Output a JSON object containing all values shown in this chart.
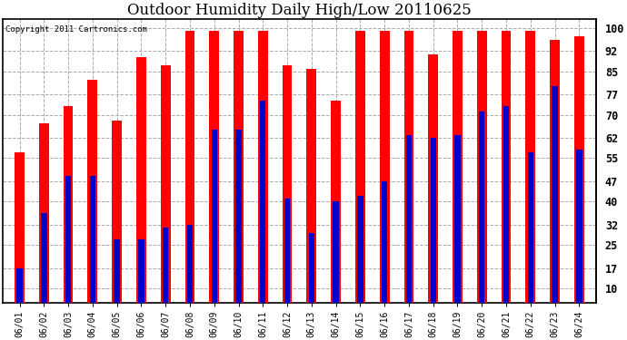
{
  "title": "Outdoor Humidity Daily High/Low 20110625",
  "copyright": "Copyright 2011 Cartronics.com",
  "dates": [
    "06/01",
    "06/02",
    "06/03",
    "06/04",
    "06/05",
    "06/06",
    "06/07",
    "06/08",
    "06/09",
    "06/10",
    "06/11",
    "06/12",
    "06/13",
    "06/14",
    "06/15",
    "06/16",
    "06/17",
    "06/18",
    "06/19",
    "06/20",
    "06/21",
    "06/22",
    "06/23",
    "06/24"
  ],
  "highs": [
    57,
    67,
    73,
    82,
    68,
    90,
    87,
    99,
    99,
    99,
    99,
    87,
    86,
    75,
    99,
    99,
    99,
    91,
    99,
    99,
    99,
    99,
    96,
    97
  ],
  "lows": [
    17,
    36,
    49,
    49,
    27,
    27,
    31,
    32,
    65,
    65,
    75,
    41,
    29,
    40,
    42,
    47,
    63,
    62,
    63,
    71,
    73,
    57,
    80,
    58
  ],
  "bar_color_high": "#ff0000",
  "bar_color_low": "#0000cc",
  "bg_color": "#ffffff",
  "grid_color": "#aaaaaa",
  "yticks": [
    10,
    17,
    25,
    32,
    40,
    47,
    55,
    62,
    70,
    77,
    85,
    92,
    100
  ],
  "ymin": 5,
  "ymax": 103,
  "bar_width": 0.4,
  "title_fontsize": 12,
  "tick_fontsize": 7,
  "ylabel_right_fontsize": 8.5
}
